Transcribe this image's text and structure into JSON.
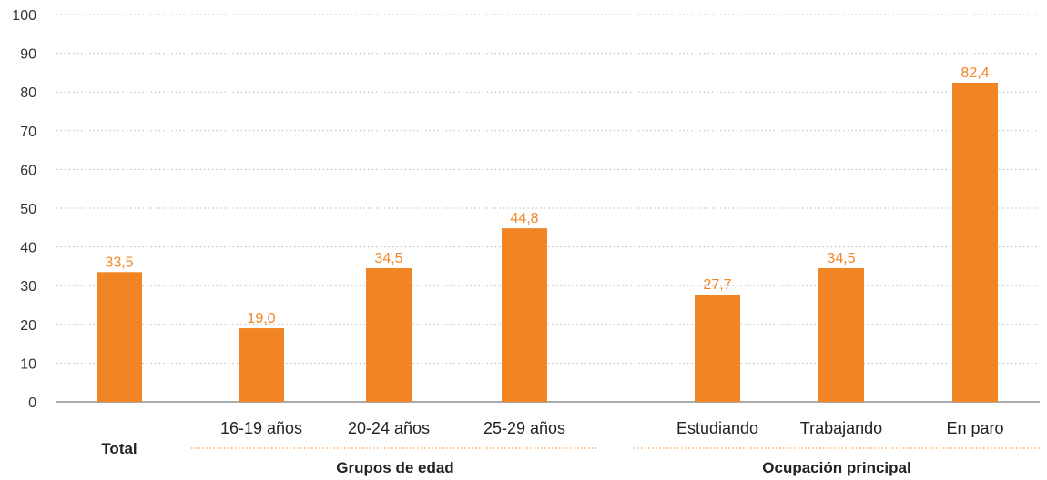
{
  "chart_data": {
    "type": "bar",
    "categories": [
      "Total",
      "16-19 años",
      "20-24 años",
      "25-29 años",
      "Estudiando",
      "Trabajando",
      "En paro"
    ],
    "values": [
      33.5,
      19.0,
      34.5,
      44.8,
      27.7,
      34.5,
      82.4
    ],
    "value_labels": [
      "33,5",
      "19,0",
      "34,5",
      "44,8",
      "27,7",
      "34,5",
      "82,4"
    ],
    "groups": [
      {
        "label": "Grupos de edad",
        "categories": [
          "16-19 años",
          "20-24 años",
          "25-29 años"
        ]
      },
      {
        "label": "Ocupación principal",
        "categories": [
          "Estudiando",
          "Trabajando",
          "En paro"
        ]
      }
    ],
    "yticks": [
      "0",
      "10",
      "20",
      "30",
      "40",
      "50",
      "60",
      "70",
      "80",
      "90",
      "100"
    ],
    "ylim": [
      0,
      100
    ],
    "grid": true,
    "bar_color": "#f28523",
    "grid_color": "#b5b5b5"
  }
}
